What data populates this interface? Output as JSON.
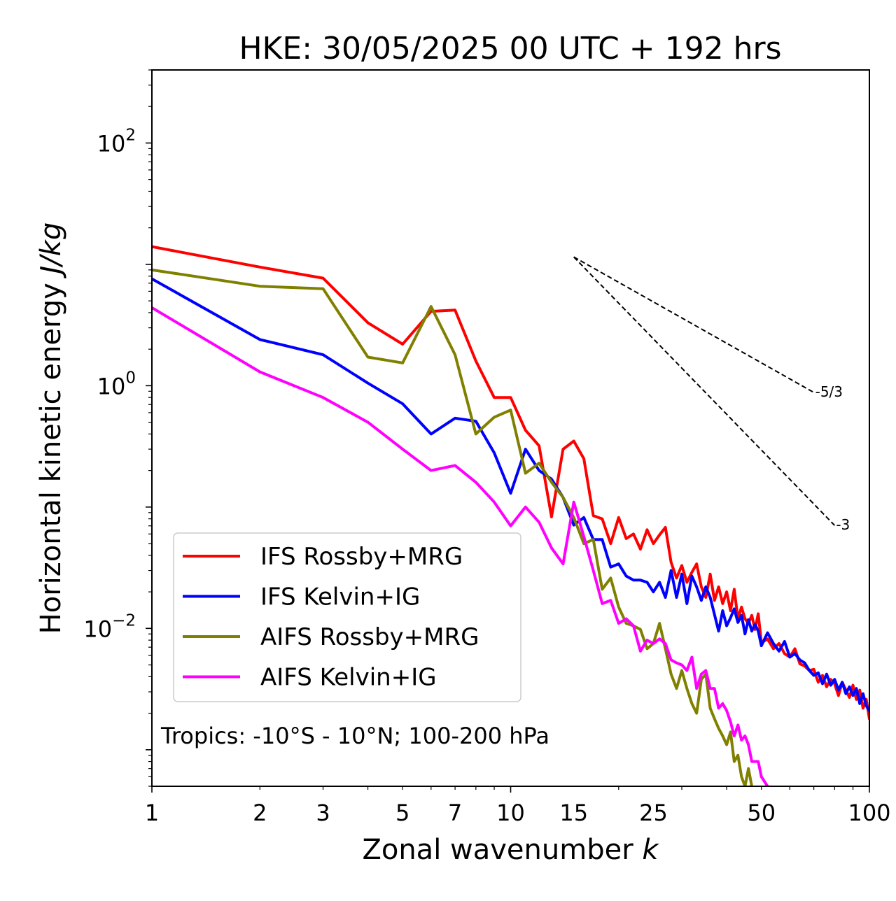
{
  "chart_data": {
    "type": "line",
    "title": "HKE: 30/05/2025 00 UTC + 192 hrs",
    "xlabel": "Zonal wavenumber ",
    "xlabel_italic": "k",
    "ylabel": "Horizontal kinetic energy ",
    "ylabel_italic": "J/kg",
    "xscale": "log",
    "yscale": "log",
    "xlim": [
      1,
      100
    ],
    "ylim": [
      0.0005,
      400
    ],
    "xticks": [
      {
        "value": 1,
        "label": "1"
      },
      {
        "value": 2,
        "label": "2"
      },
      {
        "value": 3,
        "label": "3"
      },
      {
        "value": 5,
        "label": "5"
      },
      {
        "value": 7,
        "label": "7"
      },
      {
        "value": 10,
        "label": "10"
      },
      {
        "value": 15,
        "label": "15"
      },
      {
        "value": 25,
        "label": "25"
      },
      {
        "value": 50,
        "label": "50"
      },
      {
        "value": 100,
        "label": "100"
      }
    ],
    "yticks": [
      {
        "value": 0.01,
        "base": "10",
        "exp": "−2"
      },
      {
        "value": 1,
        "base": "10",
        "exp": "0"
      },
      {
        "value": 100,
        "base": "10",
        "exp": "2"
      }
    ],
    "annotation": "Tropics: -10°S - 10°N; 100-200 hPa",
    "legend_position": "lower-left",
    "reference_lines": [
      {
        "label": "-5/3",
        "x": [
          15,
          70
        ],
        "y": [
          11.5,
          0.88
        ]
      },
      {
        "label": "-3",
        "x": [
          15,
          80
        ],
        "y": [
          11.5,
          0.0706
        ]
      }
    ],
    "series": [
      {
        "name": "IFS Rossby+MRG",
        "color": "#ff0000",
        "x": [
          1,
          2,
          3,
          4,
          5,
          6,
          7,
          8,
          9,
          10,
          11,
          12,
          13,
          14,
          15,
          16,
          17,
          18,
          19,
          20,
          21,
          22,
          23,
          24,
          25,
          26,
          27,
          28,
          29,
          30,
          31,
          32,
          33,
          34,
          35,
          36,
          37,
          38,
          39,
          40,
          41,
          42,
          43,
          44,
          45,
          46,
          47,
          48,
          49,
          50,
          52,
          54,
          56,
          58,
          60,
          62,
          64,
          66,
          68,
          70,
          72,
          74,
          76,
          78,
          80,
          82,
          84,
          86,
          88,
          90,
          92,
          94,
          96,
          98,
          100
        ],
        "y": [
          14,
          9.5,
          7.7,
          3.3,
          2.2,
          4.1,
          4.2,
          1.6,
          0.8,
          0.8,
          0.43,
          0.32,
          0.083,
          0.3,
          0.35,
          0.25,
          0.085,
          0.08,
          0.05,
          0.082,
          0.055,
          0.06,
          0.045,
          0.065,
          0.05,
          0.059,
          0.068,
          0.035,
          0.026,
          0.033,
          0.024,
          0.029,
          0.034,
          0.022,
          0.018,
          0.028,
          0.017,
          0.022,
          0.016,
          0.02,
          0.014,
          0.021,
          0.012,
          0.015,
          0.012,
          0.011,
          0.0128,
          0.0098,
          0.0132,
          0.0076,
          0.0082,
          0.0068,
          0.0075,
          0.0062,
          0.0058,
          0.0068,
          0.0051,
          0.0049,
          0.0045,
          0.0046,
          0.0036,
          0.0041,
          0.0033,
          0.0038,
          0.0035,
          0.0028,
          0.0036,
          0.0031,
          0.0027,
          0.0034,
          0.0026,
          0.0031,
          0.0022,
          0.0026,
          0.0018
        ]
      },
      {
        "name": "IFS Kelvin+IG",
        "color": "#0000ff",
        "x": [
          1,
          2,
          3,
          4,
          5,
          6,
          7,
          8,
          9,
          10,
          11,
          12,
          13,
          14,
          15,
          16,
          17,
          18,
          19,
          20,
          21,
          22,
          23,
          24,
          25,
          26,
          27,
          28,
          29,
          30,
          31,
          32,
          33,
          34,
          35,
          36,
          37,
          38,
          39,
          40,
          41,
          42,
          43,
          44,
          45,
          46,
          47,
          48,
          49,
          50,
          52,
          54,
          56,
          58,
          60,
          62,
          64,
          66,
          68,
          70,
          72,
          74,
          76,
          78,
          80,
          82,
          84,
          86,
          88,
          90,
          92,
          94,
          96,
          98,
          100
        ],
        "y": [
          7.6,
          2.4,
          1.8,
          1.05,
          0.71,
          0.4,
          0.54,
          0.51,
          0.28,
          0.13,
          0.3,
          0.2,
          0.17,
          0.12,
          0.071,
          0.082,
          0.054,
          0.054,
          0.032,
          0.034,
          0.027,
          0.025,
          0.025,
          0.024,
          0.02,
          0.024,
          0.018,
          0.03,
          0.018,
          0.028,
          0.016,
          0.027,
          0.022,
          0.017,
          0.022,
          0.018,
          0.013,
          0.0095,
          0.014,
          0.0105,
          0.0122,
          0.0145,
          0.0112,
          0.0128,
          0.009,
          0.0118,
          0.0095,
          0.0108,
          0.0095,
          0.0072,
          0.0092,
          0.0075,
          0.0065,
          0.0078,
          0.0058,
          0.0062,
          0.0055,
          0.0052,
          0.0045,
          0.0041,
          0.0043,
          0.0035,
          0.0042,
          0.0034,
          0.0038,
          0.0031,
          0.0036,
          0.0029,
          0.0033,
          0.0028,
          0.0032,
          0.0024,
          0.0029,
          0.0023,
          0.0021
        ]
      },
      {
        "name": "AIFS Rossby+MRG",
        "color": "#808000",
        "x": [
          1,
          2,
          3,
          4,
          5,
          6,
          7,
          8,
          9,
          10,
          11,
          12,
          13,
          14,
          15,
          16,
          17,
          18,
          19,
          20,
          21,
          22,
          23,
          24,
          25,
          26,
          27,
          28,
          29,
          30,
          31,
          32,
          33,
          34,
          35,
          36,
          37,
          38,
          39,
          40,
          41,
          42,
          43,
          44,
          45,
          46,
          47
        ],
        "y": [
          9,
          6.6,
          6.3,
          1.72,
          1.54,
          4.5,
          1.8,
          0.4,
          0.55,
          0.63,
          0.19,
          0.23,
          0.16,
          0.12,
          0.082,
          0.05,
          0.054,
          0.021,
          0.026,
          0.015,
          0.011,
          0.0105,
          0.0098,
          0.0068,
          0.0075,
          0.011,
          0.0068,
          0.0042,
          0.0032,
          0.0045,
          0.0032,
          0.0024,
          0.002,
          0.0038,
          0.0042,
          0.0022,
          0.0018,
          0.0015,
          0.0013,
          0.0011,
          0.0014,
          0.0008,
          0.0009,
          0.0006,
          0.0005,
          0.0007,
          0.0005
        ]
      },
      {
        "name": "AIFS Kelvin+IG",
        "color": "#ff00ff",
        "x": [
          1,
          2,
          3,
          4,
          5,
          6,
          7,
          8,
          9,
          10,
          11,
          12,
          13,
          14,
          15,
          16,
          17,
          18,
          19,
          20,
          21,
          22,
          23,
          24,
          25,
          26,
          27,
          28,
          29,
          30,
          31,
          32,
          33,
          34,
          35,
          36,
          37,
          38,
          39,
          40,
          41,
          42,
          43,
          44,
          45,
          46,
          47,
          48,
          49,
          50,
          52,
          54
        ],
        "y": [
          4.4,
          1.3,
          0.8,
          0.5,
          0.3,
          0.2,
          0.22,
          0.16,
          0.11,
          0.07,
          0.1,
          0.075,
          0.046,
          0.034,
          0.11,
          0.057,
          0.03,
          0.016,
          0.017,
          0.011,
          0.012,
          0.0105,
          0.0065,
          0.008,
          0.0075,
          0.0082,
          0.0075,
          0.0055,
          0.0052,
          0.005,
          0.0045,
          0.0058,
          0.0032,
          0.0042,
          0.0045,
          0.0032,
          0.0032,
          0.0022,
          0.0024,
          0.0021,
          0.0017,
          0.0013,
          0.0016,
          0.0012,
          0.0013,
          0.0011,
          0.0008,
          0.0008,
          0.0008,
          0.0006,
          0.0005,
          0.0004
        ]
      }
    ]
  }
}
